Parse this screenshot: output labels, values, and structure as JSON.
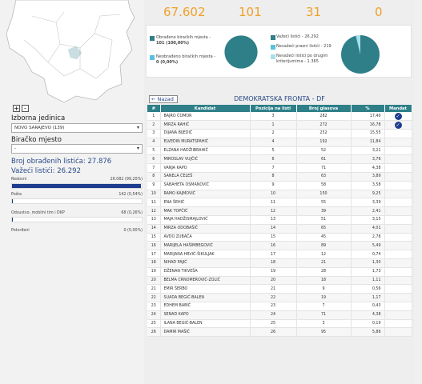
{
  "stats": {
    "v1": "67.602",
    "v2": "101",
    "v3": "31",
    "v4": "0"
  },
  "summary": {
    "obradeno_label": "Obrađeno biračkih mjesta -",
    "obradeno_value": "101 (100,00%)",
    "neobradeno_label": "Neobrađeno biračkih mjesta -",
    "neobradeno_value": "0 (0,00%)",
    "vazeci": "Važeći listići - 26.292",
    "prazni": "Nevažeći prazni listići - 219",
    "drugi_1": "Nevažeći listići po drugim",
    "drugi_2": "kriterijumima - 1.365",
    "colors": {
      "main": "#2e7f88",
      "light": "#5bc0de",
      "border": "#ffffff"
    }
  },
  "left": {
    "zoom_in": "+",
    "zoom_out": "-",
    "izborna_label": "Izborna jedinica",
    "izborna_value": "NOVO SARAJEVO (139)",
    "mjesto_label": "Biračko mjesto",
    "mjesto_value": "-",
    "broj_obradenih": "Broj obrađenih listića: 27.876",
    "vazeci": "Važeći listići: 26.292",
    "bars": [
      {
        "label": "Redovni",
        "value": "26.082 (99,20%)",
        "pct": 99.2
      },
      {
        "label": "Pošta",
        "value": "142 (0,54%)",
        "pct": 0.54
      },
      {
        "label": "Odsustvo, mobilni tim i DKP",
        "value": "68 (0,26%)",
        "pct": 0.26
      },
      {
        "label": "Potvrđeni",
        "value": "0 (0,00%)",
        "pct": 0
      }
    ]
  },
  "panel": {
    "back": "← Nazad",
    "title": "DEMOKRATSKA FRONTA - DF",
    "headers": [
      "#",
      "Kandidat",
      "Pozicija na listi",
      "Broj glasova",
      "%",
      "Mandat"
    ],
    "rows": [
      [
        "1",
        "BAJRO ĆOMOR",
        "3",
        "282",
        "17,40",
        true
      ],
      [
        "2",
        "MIRZA RAHIĆ",
        "1",
        "272",
        "16,78",
        true
      ],
      [
        "3",
        "DIJANA BIJEDIĆ",
        "2",
        "252",
        "15,55",
        false
      ],
      [
        "4",
        "ELVEDIN MURATSPAHIĆ",
        "4",
        "192",
        "11,84",
        false
      ],
      [
        "5",
        "ELZANA HADŽIIBRAHIĆ",
        "5",
        "52",
        "3,21",
        false
      ],
      [
        "6",
        "MIROSLAV VUJČIĆ",
        "6",
        "61",
        "3,76",
        false
      ],
      [
        "7",
        "VANJA KAPO",
        "7",
        "71",
        "4,38",
        false
      ],
      [
        "8",
        "SANELA ĆELEŠ",
        "8",
        "63",
        "3,89",
        false
      ],
      [
        "9",
        "SABAHETA OSMANOVIĆ",
        "9",
        "58",
        "3,58",
        false
      ],
      [
        "10",
        "RAMO KAJMOVIĆ",
        "10",
        "150",
        "9,25",
        false
      ],
      [
        "11",
        "ENA ŠEHIĆ",
        "11",
        "55",
        "3,39",
        false
      ],
      [
        "12",
        "MAK TOPČIĆ",
        "12",
        "39",
        "2,41",
        false
      ],
      [
        "13",
        "MAJA HADŽISMAJLOVIĆ",
        "13",
        "51",
        "3,15",
        false
      ],
      [
        "14",
        "MIRZA ODOBAŠIĆ",
        "14",
        "65",
        "4,01",
        false
      ],
      [
        "15",
        "AVDO ZUBAČA",
        "15",
        "45",
        "2,78",
        false
      ],
      [
        "16",
        "MARIJELA HAŠIMBEGOVIĆ",
        "16",
        "89",
        "5,49",
        false
      ],
      [
        "17",
        "MARIJANA HRVIĆ-ŠIKULJAK",
        "17",
        "12",
        "0,74",
        false
      ],
      [
        "18",
        "NIHAD PAJIĆ",
        "18",
        "21",
        "1,30",
        false
      ],
      [
        "19",
        "DŽENAN TIKVEŠA",
        "19",
        "28",
        "1,73",
        false
      ],
      [
        "20",
        "BELMA CRNOMEROVIĆ-ZOLIĆ",
        "20",
        "18",
        "1,11",
        false
      ],
      [
        "21",
        "EMIR ŠERBO",
        "21",
        "9",
        "0,56",
        false
      ],
      [
        "22",
        "SUADA BEGIĆ-BALEN",
        "22",
        "19",
        "1,17",
        false
      ],
      [
        "23",
        "EDHEM BABIĆ",
        "23",
        "7",
        "0,43",
        false
      ],
      [
        "24",
        "SENAD KAPO",
        "24",
        "71",
        "4,38",
        false
      ],
      [
        "25",
        "ILANA BEGIĆ-BALEN",
        "25",
        "3",
        "0,19",
        false
      ],
      [
        "26",
        "DAMIR MAŠIĆ",
        "26",
        "95",
        "5,86",
        false
      ]
    ]
  }
}
